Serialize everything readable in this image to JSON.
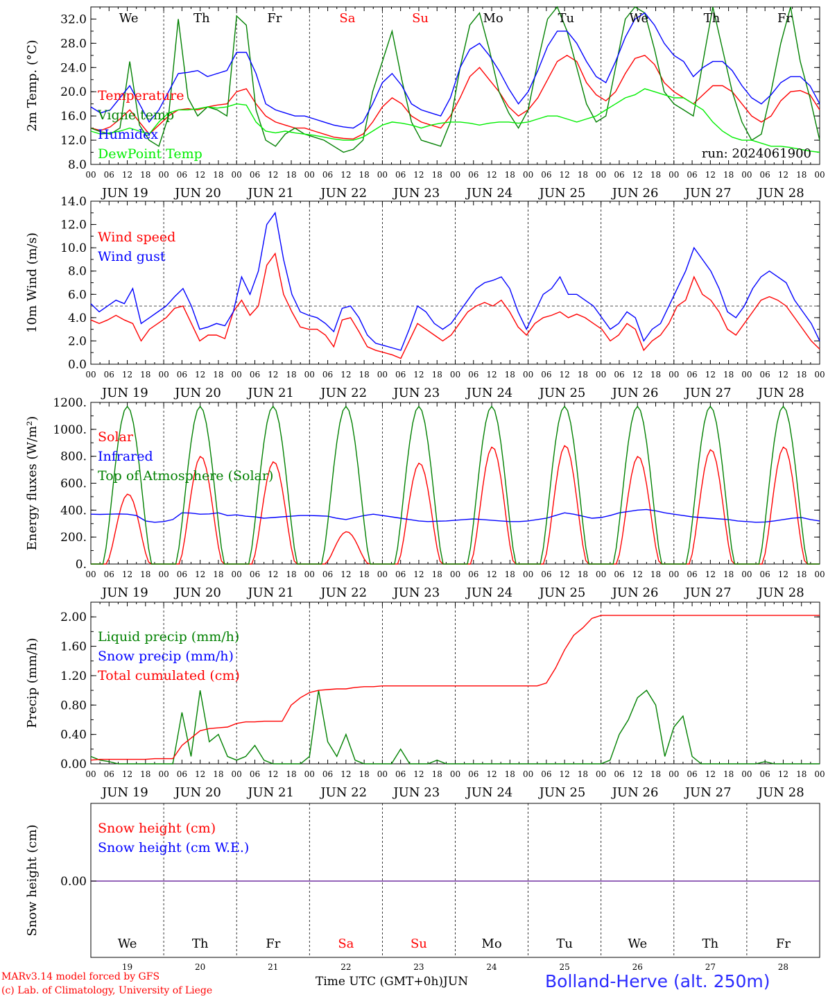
{
  "chart_data": [
    {
      "type": "line",
      "ylabel": "2m Temp. (°C)",
      "ylim": [
        8,
        34
      ],
      "yticks": [
        "8.0",
        "12.0",
        "16.0",
        "20.0",
        "24.0",
        "28.0",
        "32.0"
      ],
      "weekday_labels": [
        {
          "text": "We",
          "color": "#000000"
        },
        {
          "text": "Th",
          "color": "#000000"
        },
        {
          "text": "Fr",
          "color": "#000000"
        },
        {
          "text": "Sa",
          "color": "#ff0000"
        },
        {
          "text": "Su",
          "color": "#ff0000"
        },
        {
          "text": "Mo",
          "color": "#000000"
        },
        {
          "text": "Tu",
          "color": "#000000"
        },
        {
          "text": "We",
          "color": "#000000"
        },
        {
          "text": "Th",
          "color": "#000000"
        },
        {
          "text": "Fr",
          "color": "#000000"
        }
      ],
      "run_label": "run: 2024061900",
      "hour_labels": [
        "00",
        "06",
        "12",
        "18"
      ],
      "day_labels": [
        "JUN 19",
        "JUN 20",
        "JUN 21",
        "JUN 22",
        "JUN 23",
        "JUN 24",
        "JUN 25",
        "JUN 26",
        "JUN 27",
        "JUN 28"
      ],
      "series": [
        {
          "name": "Temperature",
          "color": "#ff0000",
          "values": [
            14,
            13.6,
            14.2,
            15.5,
            17.0,
            15.0,
            13.0,
            14.5,
            16.0,
            17.0,
            17.2,
            17.0,
            17.5,
            17.8,
            18.0,
            20.0,
            20.5,
            18.0,
            16.0,
            15.0,
            14.5,
            14.0,
            14.0,
            13.5,
            13.0,
            12.5,
            12.3,
            12.2,
            13.0,
            15.0,
            17.5,
            19.0,
            18.0,
            16.0,
            15.0,
            14.5,
            14.0,
            16.0,
            19.0,
            22.5,
            24.0,
            22.0,
            20.0,
            17.5,
            16.0,
            17.0,
            19.0,
            22.0,
            25.0,
            26.0,
            25.0,
            21.5,
            19.5,
            18.5,
            20.0,
            23.0,
            25.5,
            26.0,
            24.5,
            21.5,
            20.0,
            19.0,
            18.0,
            19.5,
            21.0,
            21.0,
            20.0,
            18.0,
            16.0,
            15.0,
            16.0,
            18.5,
            20.0,
            20.2,
            19.5,
            17.0
          ]
        },
        {
          "name": "Vigne temp",
          "color": "#008000",
          "values": [
            14,
            13.4,
            13.0,
            14.0,
            25.0,
            14.5,
            12.0,
            11.0,
            16.0,
            32.0,
            19.0,
            16.0,
            17.5,
            17.0,
            16.0,
            32.5,
            31.0,
            17.0,
            12.0,
            11.0,
            13.0,
            14.0,
            13.0,
            12.5,
            12.0,
            11.0,
            10.0,
            10.5,
            12.0,
            20.0,
            25.0,
            30.0,
            22.0,
            15.0,
            12.0,
            11.5,
            11.0,
            15.0,
            24.0,
            31.0,
            33.0,
            27.0,
            20.0,
            16.5,
            14.0,
            17.0,
            25.0,
            32.0,
            34.0,
            30.0,
            24.0,
            18.0,
            15.0,
            16.0,
            24.0,
            32.0,
            34.0,
            33.0,
            27.0,
            20.0,
            18.0,
            17.0,
            16.0,
            25.0,
            34.0,
            27.0,
            20.0,
            15.0,
            12.0,
            13.0,
            20.0,
            28.0,
            34.0,
            25.0,
            19.0,
            12.0
          ]
        },
        {
          "name": "Humidex",
          "color": "#0000ff",
          "values": [
            17.5,
            16.5,
            17.0,
            19.0,
            21.0,
            18.0,
            15.0,
            17.0,
            20.0,
            23.0,
            23.2,
            23.5,
            22.5,
            23.0,
            23.5,
            26.5,
            26.5,
            23.0,
            18.0,
            17.0,
            16.5,
            16.0,
            16.0,
            15.5,
            15.0,
            14.5,
            14.2,
            14.0,
            15.0,
            18.0,
            21.5,
            23.0,
            21.0,
            18.0,
            17.0,
            16.5,
            16.0,
            19.0,
            24.0,
            27.0,
            28.0,
            26.0,
            23.5,
            20.5,
            18.0,
            20.0,
            23.5,
            27.5,
            30.0,
            30.0,
            28.0,
            25.0,
            22.5,
            21.5,
            25.0,
            29.0,
            32.0,
            33.0,
            31.0,
            28.0,
            26.0,
            25.0,
            22.5,
            24.0,
            25.0,
            25.0,
            23.5,
            21.0,
            19.0,
            18.0,
            19.5,
            21.5,
            22.5,
            22.5,
            21.0,
            18.0
          ]
        },
        {
          "name": "DewPoint Temp",
          "color": "#00ee00",
          "values": [
            13.5,
            13.0,
            13.2,
            13.5,
            14.0,
            13.5,
            13.0,
            15.0,
            16.5,
            17.0,
            17.0,
            17.2,
            17.5,
            17.3,
            17.5,
            18.0,
            17.8,
            15.0,
            13.5,
            13.2,
            13.5,
            13.2,
            13.0,
            12.8,
            12.5,
            12.2,
            12.0,
            12.0,
            12.5,
            13.5,
            14.5,
            15.0,
            14.8,
            14.5,
            14.0,
            14.5,
            14.8,
            15.0,
            15.0,
            14.8,
            14.5,
            14.8,
            15.0,
            15.0,
            14.8,
            15.0,
            15.5,
            16.0,
            16.0,
            15.5,
            15.0,
            15.5,
            16.0,
            17.0,
            18.0,
            19.0,
            19.5,
            20.5,
            20.0,
            19.5,
            19.0,
            19.0,
            18.0,
            17.0,
            15.0,
            13.5,
            12.5,
            12.0,
            12.0,
            11.5,
            11.0,
            11.0,
            10.8,
            10.5,
            10.2,
            10.0
          ]
        }
      ]
    },
    {
      "type": "line",
      "ylabel": "10m Wind (m/s)",
      "ylim": [
        0,
        14
      ],
      "yticks": [
        "0.0",
        "2.0",
        "4.0",
        "6.0",
        "8.0",
        "10.0",
        "12.0",
        "14.0"
      ],
      "reference_line": 5,
      "hour_labels": [
        "00",
        "06",
        "12",
        "18"
      ],
      "day_labels": [
        "JUN 19",
        "JUN 20",
        "JUN 21",
        "JUN 22",
        "JUN 23",
        "JUN 24",
        "JUN 25",
        "JUN 26",
        "JUN 27",
        "JUN 28"
      ],
      "series": [
        {
          "name": "Wind speed",
          "color": "#ff0000",
          "values": [
            3.8,
            3.5,
            3.8,
            4.2,
            3.8,
            3.5,
            2.0,
            3.0,
            3.5,
            4.0,
            4.8,
            5.0,
            3.5,
            2.0,
            2.5,
            2.5,
            2.2,
            4.5,
            5.5,
            4.2,
            5.0,
            8.5,
            9.5,
            6.0,
            4.5,
            3.2,
            3.0,
            3.0,
            2.5,
            1.5,
            3.8,
            4.0,
            2.8,
            1.5,
            1.2,
            1.0,
            0.8,
            0.5,
            2.0,
            3.5,
            3.0,
            2.5,
            2.0,
            2.5,
            3.5,
            4.5,
            5.0,
            5.3,
            5.0,
            5.5,
            4.5,
            3.2,
            2.5,
            3.5,
            4.0,
            4.2,
            4.5,
            4.0,
            4.3,
            4.0,
            3.5,
            3.0,
            2.0,
            2.5,
            3.5,
            3.0,
            1.2,
            2.0,
            2.5,
            3.5,
            5.0,
            5.5,
            7.5,
            6.0,
            5.5,
            4.5,
            3.0,
            2.5,
            3.5,
            4.5,
            5.5,
            5.8,
            5.5,
            5.0,
            4.0,
            3.0,
            2.0,
            1.3
          ]
        },
        {
          "name": "Wind gust",
          "color": "#0000ff",
          "values": [
            5.2,
            4.5,
            5.0,
            5.5,
            5.2,
            6.5,
            3.5,
            4.0,
            4.5,
            5.0,
            5.8,
            6.5,
            5.0,
            3.0,
            3.2,
            3.5,
            3.3,
            4.5,
            7.5,
            6.0,
            8.0,
            12.0,
            13.0,
            9.0,
            6.0,
            4.5,
            4.2,
            4.0,
            3.5,
            2.8,
            4.8,
            5.0,
            4.0,
            2.5,
            1.8,
            1.6,
            1.4,
            1.2,
            3.0,
            5.0,
            4.5,
            3.5,
            3.0,
            3.5,
            4.5,
            5.5,
            6.5,
            7.0,
            7.2,
            7.5,
            6.5,
            4.5,
            3.0,
            4.5,
            6.0,
            6.5,
            7.5,
            6.0,
            6.0,
            5.5,
            5.0,
            4.0,
            3.0,
            3.5,
            4.5,
            4.0,
            2.0,
            3.0,
            3.5,
            5.0,
            6.5,
            8.0,
            10.0,
            9.0,
            8.0,
            6.5,
            4.5,
            4.0,
            5.0,
            6.5,
            7.5,
            8.0,
            7.5,
            7.0,
            5.5,
            4.5,
            3.5,
            2.0
          ]
        }
      ]
    },
    {
      "type": "line",
      "ylabel": "Energy fluxes (W/m²)",
      "ylim": [
        0,
        1200
      ],
      "yticks": [
        "0.",
        "200.",
        "400.",
        "600.",
        "800.",
        "1000.",
        "1200."
      ],
      "hour_labels": [
        "00",
        "06",
        "12",
        "18"
      ],
      "day_labels": [
        "JUN 19",
        "JUN 20",
        "JUN 21",
        "JUN 22",
        "JUN 23",
        "JUN 24",
        "JUN 25",
        "JUN 26",
        "JUN 27",
        "JUN 28"
      ],
      "toa_peak": 1170,
      "solar_daily_peaks": [
        520,
        800,
        760,
        240,
        750,
        870,
        880,
        800,
        850,
        870
      ],
      "series": [
        {
          "name": "Solar",
          "color": "#ff0000"
        },
        {
          "name": "Infrared",
          "color": "#0000ff",
          "values": [
            370,
            368,
            370,
            372,
            370,
            360,
            320,
            310,
            315,
            330,
            380,
            378,
            370,
            372,
            380,
            360,
            365,
            355,
            350,
            340,
            345,
            350,
            355,
            360,
            360,
            358,
            355,
            340,
            330,
            345,
            360,
            370,
            360,
            350,
            340,
            330,
            320,
            315,
            318,
            320,
            325,
            330,
            335,
            330,
            325,
            320,
            315,
            315,
            320,
            330,
            340,
            360,
            380,
            370,
            355,
            340,
            345,
            360,
            380,
            390,
            400,
            405,
            395,
            380,
            370,
            360,
            350,
            345,
            340,
            335,
            330,
            320,
            315,
            310,
            312,
            320,
            330,
            340,
            345,
            330,
            320
          ]
        },
        {
          "name": "Top of Atmosphere (Solar)",
          "color": "#008000"
        }
      ]
    },
    {
      "type": "line",
      "ylabel": "Precip (mm/h)",
      "ylim": [
        0,
        2.2
      ],
      "yticks": [
        "0.00",
        "0.40",
        "0.80",
        "1.20",
        "1.60",
        "2.00"
      ],
      "hour_labels": [
        "00",
        "06",
        "12",
        "18"
      ],
      "day_labels": [
        "JUN 19",
        "JUN 20",
        "JUN 21",
        "JUN 22",
        "JUN 23",
        "JUN 24",
        "JUN 25",
        "JUN 26",
        "JUN 27",
        "JUN 28"
      ],
      "series": [
        {
          "name": "Liquid precip (mm/h)",
          "color": "#008000",
          "values": [
            0.1,
            0.05,
            0.03,
            0,
            0,
            0,
            0,
            0,
            0,
            0,
            0.7,
            0.1,
            1.0,
            0.3,
            0.4,
            0.1,
            0.05,
            0.1,
            0.25,
            0.05,
            0,
            0,
            0,
            0,
            0.1,
            1.0,
            0.3,
            0.1,
            0.4,
            0.05,
            0,
            0,
            0,
            0,
            0.2,
            0,
            0,
            0,
            0.05,
            0,
            0,
            0,
            0,
            0,
            0,
            0,
            0,
            0,
            0,
            0,
            0,
            0,
            0,
            0,
            0,
            0,
            0,
            0.05,
            0.4,
            0.6,
            0.9,
            1.0,
            0.8,
            0.1,
            0.5,
            0.65,
            0.1,
            0,
            0,
            0,
            0,
            0,
            0,
            0,
            0.03,
            0,
            0,
            0,
            0,
            0,
            0
          ]
        },
        {
          "name": "Snow precip (mm/h)",
          "color": "#0000ff"
        },
        {
          "name": "Total cumulated (cm)",
          "color": "#ff0000",
          "values": [
            0.05,
            0.06,
            0.06,
            0.06,
            0.06,
            0.06,
            0.06,
            0.07,
            0.07,
            0.07,
            0.25,
            0.35,
            0.45,
            0.48,
            0.49,
            0.5,
            0.55,
            0.57,
            0.57,
            0.58,
            0.58,
            0.58,
            0.8,
            0.9,
            0.97,
            1.0,
            1.01,
            1.02,
            1.02,
            1.04,
            1.05,
            1.05,
            1.06,
            1.06,
            1.06,
            1.06,
            1.06,
            1.06,
            1.06,
            1.06,
            1.06,
            1.06,
            1.06,
            1.06,
            1.06,
            1.06,
            1.06,
            1.06,
            1.06,
            1.06,
            1.1,
            1.3,
            1.55,
            1.75,
            1.85,
            1.98,
            2.02,
            2.02,
            2.02,
            2.02,
            2.02,
            2.02,
            2.02,
            2.02,
            2.02,
            2.02,
            2.02,
            2.02,
            2.02,
            2.02,
            2.02,
            2.02,
            2.02,
            2.02,
            2.02,
            2.02,
            2.02,
            2.02,
            2.02,
            2.02,
            2.02
          ]
        }
      ]
    },
    {
      "type": "line",
      "ylabel": "Snow height (cm)",
      "yticks": [
        "0.00"
      ],
      "weekday_labels": [
        {
          "text": "We",
          "color": "#000000"
        },
        {
          "text": "Th",
          "color": "#000000"
        },
        {
          "text": "Fr",
          "color": "#000000"
        },
        {
          "text": "Sa",
          "color": "#ff0000"
        },
        {
          "text": "Su",
          "color": "#ff0000"
        },
        {
          "text": "Mo",
          "color": "#000000"
        },
        {
          "text": "Tu",
          "color": "#000000"
        },
        {
          "text": "We",
          "color": "#000000"
        },
        {
          "text": "Th",
          "color": "#000000"
        },
        {
          "text": "Fr",
          "color": "#000000"
        }
      ],
      "day_numbers": [
        "19",
        "20",
        "21",
        "22",
        "23",
        "24",
        "25",
        "26",
        "27",
        "28"
      ],
      "series": [
        {
          "name": "Snow height (cm)",
          "color": "#ff0000",
          "values": [
            0,
            0
          ]
        },
        {
          "name": "Snow height (cm W.E.)",
          "color": "#0000ff",
          "values": [
            0,
            0
          ]
        }
      ]
    }
  ],
  "footer": {
    "model_line1": "MARv3.14 model forced by GFS",
    "model_line2": "(c) Lab. of Climatology, University of Liege",
    "time_axis": "Time UTC (GMT+0h)",
    "month": "JUN",
    "station": "Bolland-Herve (alt. 250m)"
  }
}
